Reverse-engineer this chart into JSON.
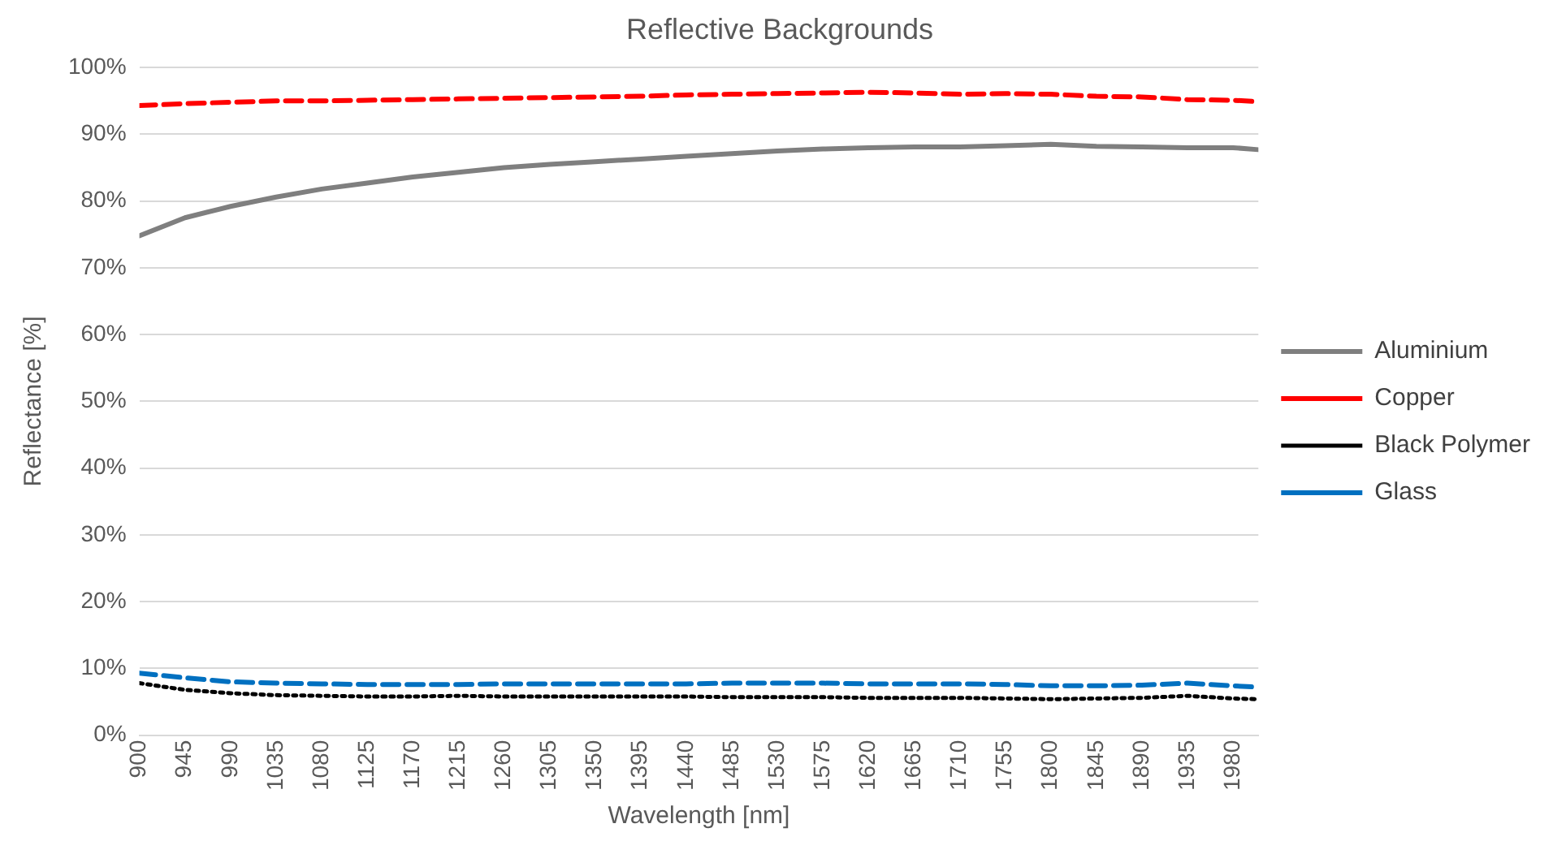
{
  "chart_data": {
    "type": "line",
    "title": "Reflective Backgrounds",
    "xlabel": "Wavelength [nm]",
    "ylabel": "Reflectance [%]",
    "x": [
      900,
      945,
      990,
      1035,
      1080,
      1125,
      1170,
      1215,
      1260,
      1305,
      1350,
      1395,
      1440,
      1485,
      1530,
      1575,
      1620,
      1665,
      1710,
      1755,
      1800,
      1845,
      1890,
      1935,
      1980,
      2005
    ],
    "series": [
      {
        "name": "Aluminium",
        "color": "#7f7f7f",
        "line_style": "solid",
        "values": [
          74.8,
          77.5,
          79.2,
          80.6,
          81.8,
          82.7,
          83.6,
          84.3,
          85.0,
          85.5,
          85.9,
          86.3,
          86.7,
          87.1,
          87.5,
          87.8,
          88.0,
          88.1,
          88.1,
          88.3,
          88.5,
          88.2,
          88.1,
          88.0,
          88.0,
          87.7
        ]
      },
      {
        "name": "Copper",
        "color": "#ff0000",
        "line_style": "dashed",
        "values": [
          94.3,
          94.6,
          94.8,
          95.0,
          95.0,
          95.1,
          95.2,
          95.3,
          95.4,
          95.5,
          95.6,
          95.7,
          95.9,
          96.0,
          96.1,
          96.2,
          96.3,
          96.2,
          96.0,
          96.1,
          96.0,
          95.7,
          95.6,
          95.2,
          95.1,
          94.9
        ]
      },
      {
        "name": "Black Polymer",
        "color": "#000000",
        "line_style": "dotted",
        "values": [
          7.8,
          6.8,
          6.3,
          6.0,
          5.9,
          5.8,
          5.8,
          5.9,
          5.8,
          5.8,
          5.8,
          5.8,
          5.8,
          5.7,
          5.7,
          5.7,
          5.6,
          5.6,
          5.6,
          5.5,
          5.4,
          5.5,
          5.6,
          5.9,
          5.5,
          5.4
        ]
      },
      {
        "name": "Glass",
        "color": "#0070c0",
        "line_style": "dashed",
        "values": [
          9.3,
          8.6,
          8.0,
          7.8,
          7.7,
          7.6,
          7.6,
          7.6,
          7.7,
          7.7,
          7.7,
          7.7,
          7.7,
          7.8,
          7.8,
          7.8,
          7.7,
          7.7,
          7.7,
          7.6,
          7.4,
          7.4,
          7.5,
          7.8,
          7.4,
          7.2
        ]
      }
    ],
    "xlim": [
      900,
      2005
    ],
    "xticks": [
      900,
      945,
      990,
      1035,
      1080,
      1125,
      1170,
      1215,
      1260,
      1305,
      1350,
      1395,
      1440,
      1485,
      1530,
      1575,
      1620,
      1665,
      1710,
      1755,
      1800,
      1845,
      1890,
      1935,
      1980
    ],
    "ylim": [
      0,
      100
    ],
    "yticks": [
      {
        "value": 0,
        "label": "0%"
      },
      {
        "value": 10,
        "label": "10%"
      },
      {
        "value": 20,
        "label": "20%"
      },
      {
        "value": 30,
        "label": "30%"
      },
      {
        "value": 40,
        "label": "40%"
      },
      {
        "value": 50,
        "label": "50%"
      },
      {
        "value": 60,
        "label": "60%"
      },
      {
        "value": 70,
        "label": "70%"
      },
      {
        "value": 80,
        "label": "80%"
      },
      {
        "value": 90,
        "label": "90%"
      },
      {
        "value": 100,
        "label": "100%"
      }
    ],
    "grid": "y",
    "legend": "right",
    "marker": "none"
  }
}
